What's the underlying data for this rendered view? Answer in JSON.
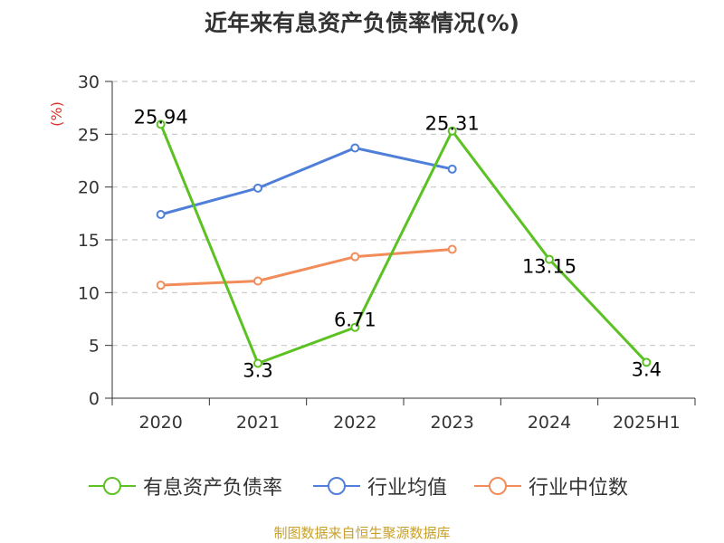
{
  "title": "近年来有息资产负债率情况(%)",
  "source": "制图数据来自恒生聚源数据库",
  "chart_data": {
    "type": "line",
    "title": "近年来有息资产负债率情况(%)",
    "ylabel": "(%)",
    "xlabel": "",
    "categories": [
      "2020",
      "2021",
      "2022",
      "2023",
      "2024",
      "2025H1"
    ],
    "ylim": [
      0,
      30
    ],
    "yticks": [
      0,
      5,
      10,
      15,
      20,
      25,
      30
    ],
    "grid": true,
    "legend_position": "bottom",
    "series": [
      {
        "name": "有息资产负债率",
        "color": "#5cc122",
        "values": [
          25.94,
          3.3,
          6.71,
          25.31,
          13.15,
          3.4
        ],
        "labels": [
          "25.94",
          "3.3",
          "6.71",
          "25.31",
          "13.15",
          "3.4"
        ]
      },
      {
        "name": "行业均值",
        "color": "#4f7fd9",
        "values": [
          17.4,
          19.9,
          23.7,
          21.7,
          null,
          null
        ]
      },
      {
        "name": "行业中位数",
        "color": "#f28c5a",
        "values": [
          10.7,
          11.1,
          13.4,
          14.1,
          null,
          null
        ]
      }
    ]
  }
}
